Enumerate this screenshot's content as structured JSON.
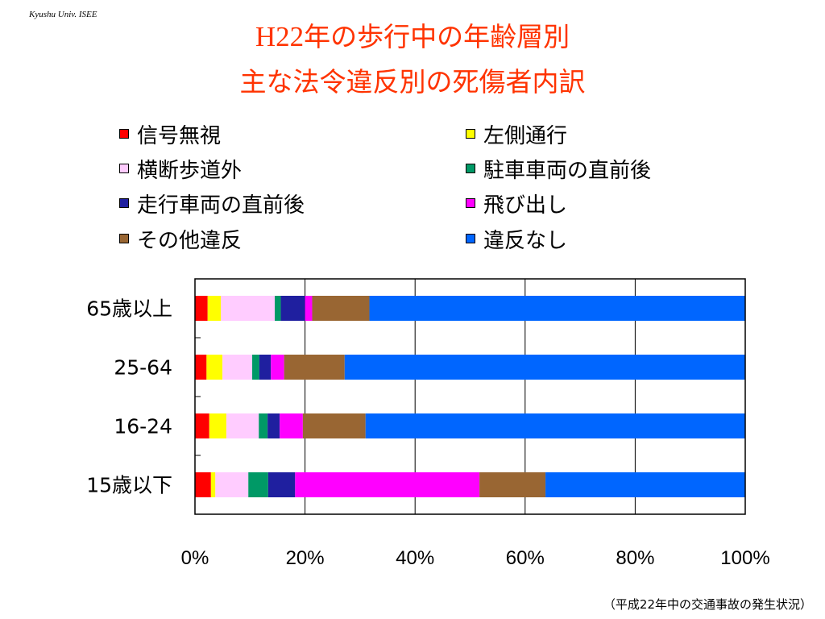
{
  "credit": "Kyushu Univ. ISEE",
  "title": {
    "line1_prefix": "H22",
    "line1_rest": "年の歩行中の年齢層別",
    "line2": "主な法令違反別の死傷者内訳"
  },
  "source": "（平成22年中の交通事故の発生状況）",
  "chart_data": {
    "type": "bar",
    "orientation": "horizontal",
    "stacked": "percent",
    "categories": [
      "65歳以上",
      "25-64",
      "16-24",
      "15歳以下"
    ],
    "series": [
      {
        "name": "信号無視",
        "color": "#ff0000",
        "values": [
          2.3,
          2.1,
          2.6,
          2.9
        ]
      },
      {
        "name": "左側通行",
        "color": "#ffff00",
        "values": [
          2.4,
          2.9,
          3.1,
          0.8
        ]
      },
      {
        "name": "横断歩道外",
        "color": "#ffccff",
        "values": [
          9.8,
          5.4,
          5.9,
          6.0
        ]
      },
      {
        "name": "駐車車両の直前後",
        "color": "#009966",
        "values": [
          1.1,
          1.3,
          1.6,
          3.6
        ]
      },
      {
        "name": "走行車両の直前後",
        "color": "#1f1f9f",
        "values": [
          4.4,
          2.1,
          2.2,
          4.9
        ]
      },
      {
        "name": "飛び出し",
        "color": "#ff00ff",
        "values": [
          1.3,
          2.4,
          4.2,
          33.5
        ]
      },
      {
        "name": "その他違反",
        "color": "#996633",
        "values": [
          10.4,
          11.0,
          11.4,
          12.0
        ]
      },
      {
        "name": "違反なし",
        "color": "#0066ff",
        "values": [
          68.3,
          72.8,
          69.0,
          36.3
        ]
      }
    ],
    "xticks": [
      "0%",
      "20%",
      "40%",
      "60%",
      "80%",
      "100%"
    ],
    "xlim": [
      0,
      100
    ],
    "grid": true,
    "legend_position": "top"
  }
}
